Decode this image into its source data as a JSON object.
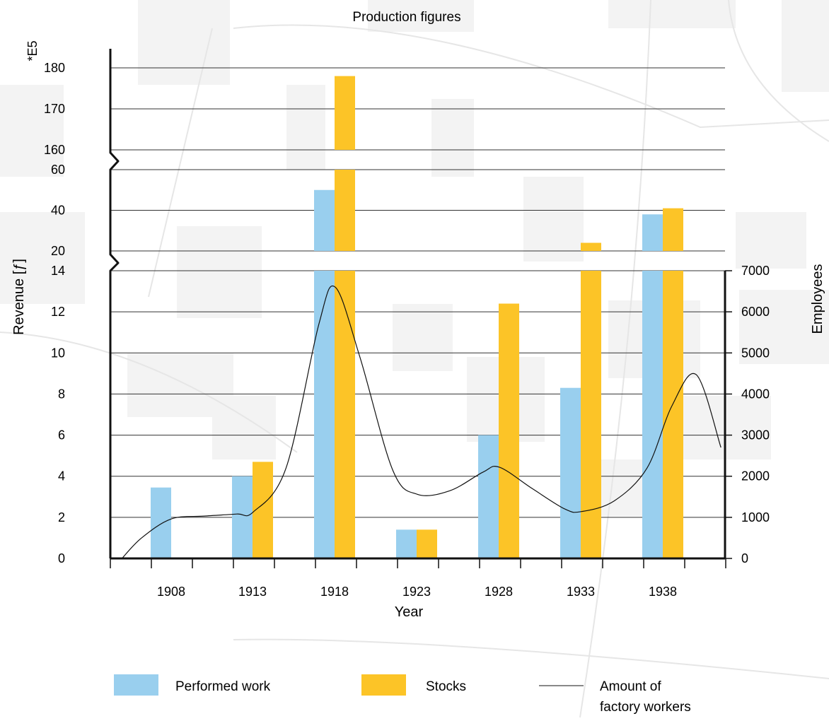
{
  "chart_data": {
    "type": "bar",
    "title": "Production figures",
    "xlabel": "Year",
    "ylabel": "Revenue [ƒ]",
    "ylabel_right": "Employees",
    "scale_note": "*E5",
    "categories": [
      "1908",
      "1913",
      "1918",
      "1923",
      "1928",
      "1933",
      "1938"
    ],
    "series": [
      {
        "name": "Performed work",
        "type": "bar",
        "color": "#99cfee",
        "values": [
          3.45,
          4.0,
          50.0,
          1.4,
          6.0,
          8.3,
          38.0
        ]
      },
      {
        "name": "Stocks",
        "type": "bar",
        "color": "#fcc427",
        "values": [
          null,
          4.7,
          178.0,
          1.4,
          12.4,
          24.0,
          41.0
        ]
      },
      {
        "name": "Amount of factory workers",
        "legend_label": [
          "Amount of",
          "factory workers"
        ],
        "type": "line",
        "axis": "right",
        "color": "#111111",
        "x": [
          1905.0,
          1906.2,
          1908.0,
          1910.0,
          1912.0,
          1913.0,
          1915.0,
          1917.0,
          1918.0,
          1919.5,
          1921.5,
          1923.0,
          1925.0,
          1927.0,
          1928.0,
          1930.0,
          1932.0,
          1933.0,
          1935.0,
          1937.0,
          1938.5,
          1940.0,
          1941.5
        ],
        "values": [
          0,
          500,
          960,
          1030,
          1080,
          1130,
          2200,
          5700,
          6600,
          4900,
          2150,
          1560,
          1650,
          2100,
          2220,
          1700,
          1200,
          1140,
          1400,
          2200,
          3700,
          4470,
          2700
        ]
      }
    ],
    "y_axis_segments": [
      {
        "range": [
          0,
          14
        ],
        "ticks": [
          "0",
          "2",
          "4",
          "6",
          "8",
          "10",
          "12",
          "14"
        ]
      },
      {
        "range": [
          20,
          60
        ],
        "ticks": [
          "20",
          "40",
          "60"
        ]
      },
      {
        "range": [
          160,
          180
        ],
        "ticks": [
          "160",
          "170",
          "180"
        ]
      }
    ],
    "y2_range": [
      0,
      7000
    ],
    "y2_ticks": [
      "0",
      "1000",
      "2000",
      "3000",
      "4000",
      "5000",
      "6000",
      "7000"
    ],
    "grid": true,
    "legend_position": "bottom"
  }
}
